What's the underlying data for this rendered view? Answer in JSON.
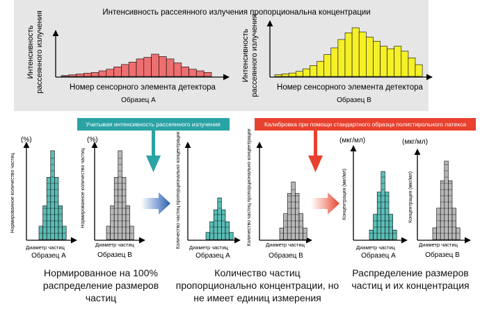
{
  "top": {
    "title": "Интенсивность рассеянного излучения пропорциональна концентрации",
    "ylabel_lines": [
      "Интенсивность",
      "рассеянного излучения"
    ],
    "xlabel": "Номер сенсорного элемента детектора",
    "sampleA": "Образец A",
    "sampleB": "Образец B"
  },
  "banners": {
    "teal": "Учитывая интенсивность рассеянного излучения",
    "red": "Калибровка при помощи стандартного образца полистирольного латекса"
  },
  "units": {
    "percent": "(%)",
    "mgml": "(мкг/мл)"
  },
  "axis": {
    "normalized": "Нормированное количество частиц",
    "proportional": "Количество частиц пропорционально концентрации",
    "concentration": "Концентрация (мкг/мл)",
    "diameter": "Диаметр частиц"
  },
  "samples": {
    "a": "Образец A",
    "b": "Образец B"
  },
  "captions": {
    "left": "Нормированное на 100% распределение размеров частиц",
    "middle": "Количество частиц пропорционально концентрации, но не имеет единиц измерения",
    "right": "Распределение размеров частиц и их концентрация"
  },
  "colors": {
    "top_panel_bg": "#e6e6e6",
    "sample_a_top": "#ee6f70",
    "sample_b_top": "#f5f028",
    "teal": "#5bbdb6",
    "gray_bar": "#b8b8b8",
    "teal_banner": "#2aa3a5",
    "red_banner": "#e8412e"
  },
  "chart_data": [
    {
      "type": "bar",
      "name_key": "top-sample-a",
      "values": [
        1,
        2,
        3,
        4,
        5,
        7,
        9,
        12,
        15,
        18,
        22,
        24,
        28,
        25,
        22,
        17,
        12,
        9,
        7,
        5
      ]
    },
    {
      "type": "bar",
      "name_key": "top-sample-b",
      "values": [
        2,
        3,
        4,
        6,
        9,
        13,
        18,
        26,
        34,
        44,
        52,
        58,
        53,
        47,
        42,
        36,
        33,
        36,
        30,
        22,
        14
      ]
    },
    {
      "type": "bar",
      "name_key": "norm-a",
      "values": [
        15,
        38,
        70,
        100,
        70,
        38,
        15
      ]
    },
    {
      "type": "bar",
      "name_key": "norm-b",
      "values": [
        15,
        38,
        70,
        100,
        70,
        38,
        15
      ]
    },
    {
      "type": "bar",
      "name_key": "prop-a",
      "values": [
        12,
        30,
        50,
        70,
        50,
        30,
        12
      ]
    },
    {
      "type": "bar",
      "name_key": "prop-b",
      "values": [
        20,
        45,
        80,
        100,
        80,
        45,
        20
      ]
    },
    {
      "type": "bar",
      "name_key": "conc-a",
      "values": [
        12,
        32,
        60,
        86,
        60,
        32,
        12
      ]
    },
    {
      "type": "bar",
      "name_key": "conc-b",
      "values": [
        15,
        40,
        75,
        100,
        75,
        40,
        15
      ]
    }
  ]
}
